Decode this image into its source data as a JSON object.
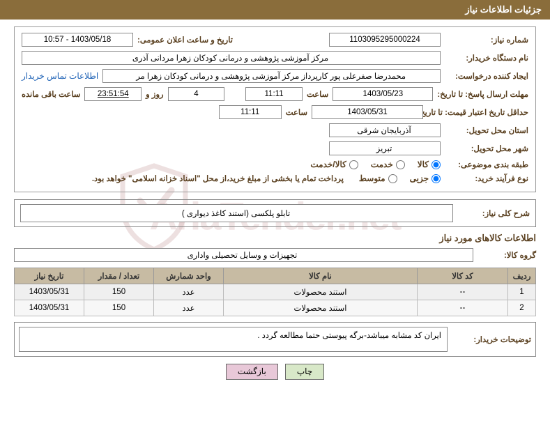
{
  "header": {
    "title": "جزئیات اطلاعات نیاز"
  },
  "watermark": "AriaTender.net",
  "fields": {
    "need_no_label": "شماره نیاز:",
    "need_no": "1103095295000224",
    "public_date_label": "تاریخ و ساعت اعلان عمومی:",
    "public_date": "1403/05/18 - 10:57",
    "buyer_org_label": "نام دستگاه خریدار:",
    "buyer_org": "مرکز آموزشی پژوهشی و درمانی کودکان زهرا مردانی آذری",
    "requester_label": "ایجاد کننده درخواست:",
    "requester": "محمدرضا صفرعلی پور کارپرداز مرکز آموزشی پژوهشی و درمانی کودکان زهرا مر",
    "contact_link": "اطلاعات تماس خریدار",
    "deadline_label": "مهلت ارسال پاسخ: تا تاریخ:",
    "deadline_date": "1403/05/23",
    "time_label": "ساعت",
    "deadline_time": "11:11",
    "days": "4",
    "days_label": "روز و",
    "countdown": "23:51:54",
    "remaining_label": "ساعت باقی مانده",
    "validity_label": "حداقل تاریخ اعتبار قیمت: تا تاریخ:",
    "validity_date": "1403/05/31",
    "validity_time": "11:11",
    "province_label": "استان محل تحویل:",
    "province": "آذربایجان شرقی",
    "city_label": "شهر محل تحویل:",
    "city": "تبریز",
    "category_label": "طبقه بندی موضوعی:",
    "process_label": "نوع فرآیند خرید:",
    "payment_note": "پرداخت تمام یا بخشی از مبلغ خرید،از محل \"اسناد خزانه اسلامی\" خواهد بود."
  },
  "radios": {
    "cat1": "کالا",
    "cat2": "خدمت",
    "cat3": "کالا/خدمت",
    "proc1": "جزیی",
    "proc2": "متوسط"
  },
  "desc": {
    "label": "شرح کلی نیاز:",
    "value": "تابلو پلکسی (استند کاغذ دیواری )"
  },
  "goods_section": "اطلاعات کالاهای مورد نیاز",
  "group": {
    "label": "گروه کالا:",
    "value": "تجهیزات و وسایل تحصیلی واداری"
  },
  "table": {
    "headers": [
      "ردیف",
      "کد کالا",
      "نام کالا",
      "واحد شمارش",
      "تعداد / مقدار",
      "تاریخ نیاز"
    ],
    "col_widths": [
      "40px",
      "130px",
      "auto",
      "100px",
      "100px",
      "100px"
    ],
    "rows": [
      [
        "1",
        "--",
        "استند محصولات",
        "عدد",
        "150",
        "1403/05/31"
      ],
      [
        "2",
        "--",
        "استند محصولات",
        "عدد",
        "150",
        "1403/05/31"
      ]
    ]
  },
  "comment": {
    "label": "توضیحات خریدار:",
    "value": "ایران کد مشابه میباشد-برگه پیوستی حتما مطالعه گردد ."
  },
  "buttons": {
    "print": "چاپ",
    "back": "بازگشت"
  },
  "colors": {
    "header_bg": "#8a6d3b",
    "label_color": "#5a4020",
    "th_bg": "#c7bba3",
    "link": "#1a5fb4"
  }
}
